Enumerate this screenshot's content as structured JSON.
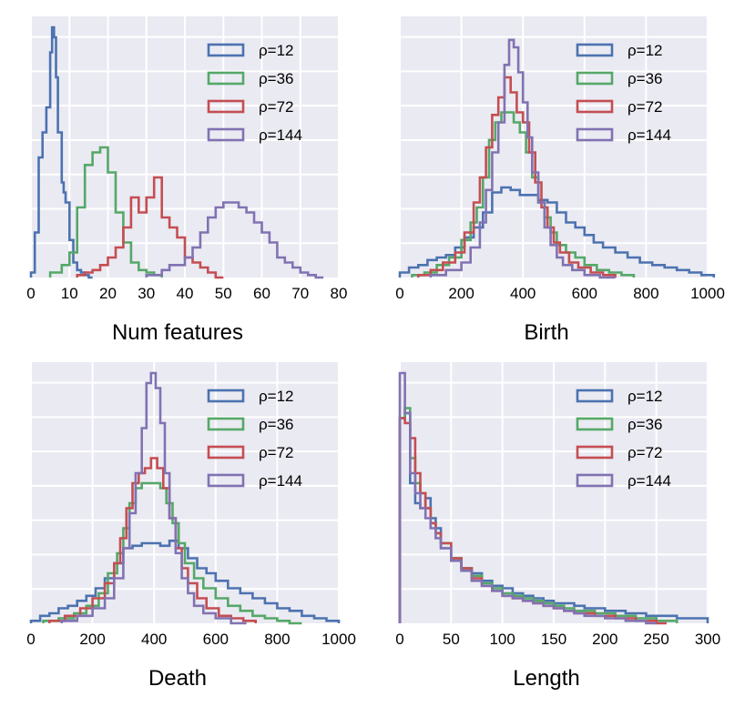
{
  "chart_data": [
    {
      "type": "histogram",
      "xlabel": "Num features",
      "xlim": [
        0,
        80
      ],
      "xticks": [
        0,
        10,
        20,
        30,
        40,
        50,
        60,
        70,
        80
      ],
      "ylim": [
        0,
        1
      ],
      "y_tick_labels_shown": false,
      "legend": "top-right",
      "series": [
        {
          "name": "ρ=12",
          "color": "#4c72b0",
          "x": [
            0,
            1,
            2,
            3,
            4,
            5,
            5.5,
            6,
            6.5,
            7,
            8,
            8.5,
            9,
            10,
            11,
            12,
            13,
            14,
            15
          ],
          "y": [
            0.02,
            0.18,
            0.48,
            0.58,
            0.68,
            0.9,
            1.0,
            0.96,
            0.8,
            0.58,
            0.38,
            0.34,
            0.3,
            0.15,
            0.06,
            0.03,
            0.02,
            0.01,
            0
          ]
        },
        {
          "name": "ρ=36",
          "color": "#55a868",
          "x": [
            5,
            8,
            10,
            12,
            14,
            16,
            18,
            20,
            22,
            24,
            26,
            28,
            30,
            32
          ],
          "y": [
            0.02,
            0.05,
            0.1,
            0.28,
            0.45,
            0.5,
            0.52,
            0.42,
            0.26,
            0.14,
            0.06,
            0.03,
            0.02,
            0.01
          ]
        },
        {
          "name": "ρ=72",
          "color": "#c44e52",
          "x": [
            12,
            14,
            16,
            18,
            20,
            22,
            24,
            26,
            28,
            30,
            32,
            34,
            36,
            38,
            40,
            42,
            44,
            46,
            48
          ],
          "y": [
            0.01,
            0.02,
            0.03,
            0.05,
            0.08,
            0.12,
            0.2,
            0.32,
            0.26,
            0.32,
            0.4,
            0.24,
            0.2,
            0.16,
            0.08,
            0.06,
            0.04,
            0.02,
            0
          ]
        },
        {
          "name": "ρ=144",
          "color": "#8172b2",
          "x": [
            30,
            34,
            36,
            40,
            42,
            44,
            46,
            48,
            50,
            52,
            54,
            56,
            58,
            60,
            62,
            64,
            66,
            68,
            70,
            72,
            74
          ],
          "y": [
            0.01,
            0.03,
            0.05,
            0.08,
            0.12,
            0.18,
            0.24,
            0.28,
            0.3,
            0.3,
            0.28,
            0.26,
            0.22,
            0.18,
            0.14,
            0.08,
            0.06,
            0.04,
            0.02,
            0.01,
            0
          ]
        }
      ]
    },
    {
      "type": "histogram",
      "xlabel": "Birth",
      "xlim": [
        0,
        1000
      ],
      "xticks": [
        0,
        200,
        400,
        600,
        800,
        1000
      ],
      "ylim": [
        0,
        1
      ],
      "y_tick_labels_shown": false,
      "legend": "top-right",
      "series": [
        {
          "name": "ρ=12",
          "color": "#4c72b0",
          "x": [
            0,
            30,
            60,
            90,
            120,
            150,
            180,
            210,
            240,
            270,
            300,
            330,
            360,
            390,
            420,
            450,
            480,
            510,
            540,
            570,
            600,
            630,
            660,
            700,
            740,
            780,
            820,
            860,
            900,
            940,
            980
          ],
          "y": [
            0.02,
            0.04,
            0.05,
            0.07,
            0.08,
            0.09,
            0.12,
            0.16,
            0.2,
            0.26,
            0.34,
            0.36,
            0.35,
            0.33,
            0.33,
            0.31,
            0.3,
            0.26,
            0.22,
            0.2,
            0.17,
            0.14,
            0.12,
            0.1,
            0.08,
            0.06,
            0.05,
            0.04,
            0.03,
            0.02,
            0.01
          ]
        },
        {
          "name": "ρ=36",
          "color": "#55a868",
          "x": [
            40,
            80,
            120,
            160,
            200,
            230,
            250,
            270,
            290,
            310,
            330,
            350,
            370,
            390,
            410,
            430,
            450,
            470,
            490,
            510,
            540,
            570,
            600,
            640,
            680,
            720
          ],
          "y": [
            0.01,
            0.02,
            0.05,
            0.08,
            0.15,
            0.22,
            0.28,
            0.4,
            0.55,
            0.62,
            0.66,
            0.66,
            0.62,
            0.58,
            0.5,
            0.4,
            0.3,
            0.24,
            0.18,
            0.13,
            0.1,
            0.08,
            0.05,
            0.03,
            0.02,
            0.01
          ]
        },
        {
          "name": "ρ=72",
          "color": "#c44e52",
          "x": [
            60,
            100,
            140,
            180,
            210,
            240,
            260,
            280,
            300,
            320,
            340,
            360,
            380,
            400,
            420,
            440,
            460,
            480,
            500,
            520,
            550,
            580,
            620,
            660
          ],
          "y": [
            0.01,
            0.03,
            0.06,
            0.1,
            0.18,
            0.3,
            0.4,
            0.52,
            0.65,
            0.72,
            0.8,
            0.74,
            0.66,
            0.62,
            0.5,
            0.38,
            0.28,
            0.2,
            0.14,
            0.1,
            0.06,
            0.04,
            0.02,
            0.01
          ]
        },
        {
          "name": "ρ=144",
          "color": "#8172b2",
          "x": [
            100,
            150,
            200,
            230,
            260,
            280,
            300,
            320,
            340,
            355,
            370,
            385,
            400,
            415,
            430,
            450,
            470,
            490,
            510,
            530,
            560,
            600,
            650
          ],
          "y": [
            0.01,
            0.03,
            0.06,
            0.12,
            0.22,
            0.35,
            0.5,
            0.62,
            0.85,
            0.95,
            0.92,
            0.82,
            0.7,
            0.56,
            0.42,
            0.3,
            0.2,
            0.13,
            0.08,
            0.05,
            0.03,
            0.01,
            0
          ]
        }
      ]
    },
    {
      "type": "histogram",
      "xlabel": "Death",
      "xlim": [
        0,
        1000
      ],
      "xticks": [
        0,
        200,
        400,
        600,
        800,
        1000
      ],
      "ylim": [
        0,
        1
      ],
      "y_tick_labels_shown": false,
      "legend": "top-right",
      "series": [
        {
          "name": "ρ=12",
          "color": "#4c72b0",
          "x": [
            0,
            30,
            60,
            90,
            120,
            150,
            180,
            210,
            240,
            270,
            300,
            330,
            360,
            390,
            420,
            450,
            480,
            510,
            540,
            570,
            600,
            640,
            680,
            720,
            760,
            800,
            840,
            880,
            920,
            960
          ],
          "y": [
            0.01,
            0.03,
            0.04,
            0.06,
            0.07,
            0.09,
            0.11,
            0.14,
            0.18,
            0.24,
            0.3,
            0.31,
            0.32,
            0.32,
            0.31,
            0.33,
            0.3,
            0.26,
            0.22,
            0.2,
            0.17,
            0.14,
            0.12,
            0.1,
            0.08,
            0.06,
            0.05,
            0.03,
            0.02,
            0.01
          ]
        },
        {
          "name": "ρ=36",
          "color": "#55a868",
          "x": [
            40,
            90,
            140,
            180,
            220,
            250,
            280,
            300,
            320,
            340,
            360,
            380,
            400,
            420,
            440,
            460,
            480,
            500,
            530,
            560,
            600,
            640,
            680,
            720,
            760,
            800,
            840
          ],
          "y": [
            0.01,
            0.02,
            0.04,
            0.07,
            0.12,
            0.2,
            0.28,
            0.38,
            0.48,
            0.54,
            0.56,
            0.56,
            0.56,
            0.54,
            0.48,
            0.4,
            0.32,
            0.24,
            0.18,
            0.14,
            0.1,
            0.07,
            0.05,
            0.03,
            0.02,
            0.01,
            0
          ]
        },
        {
          "name": "ρ=72",
          "color": "#c44e52",
          "x": [
            60,
            110,
            160,
            200,
            240,
            270,
            290,
            310,
            330,
            350,
            370,
            390,
            410,
            430,
            450,
            470,
            490,
            510,
            540,
            570,
            610,
            650,
            690
          ],
          "y": [
            0.01,
            0.03,
            0.06,
            0.1,
            0.16,
            0.24,
            0.34,
            0.46,
            0.56,
            0.6,
            0.62,
            0.66,
            0.62,
            0.54,
            0.42,
            0.3,
            0.22,
            0.16,
            0.1,
            0.06,
            0.03,
            0.02,
            0.01
          ]
        },
        {
          "name": "ρ=144",
          "color": "#8172b2",
          "x": [
            100,
            150,
            200,
            240,
            270,
            300,
            320,
            340,
            360,
            375,
            390,
            405,
            420,
            435,
            450,
            470,
            490,
            510,
            530,
            560,
            600,
            650
          ],
          "y": [
            0.01,
            0.03,
            0.06,
            0.1,
            0.18,
            0.3,
            0.44,
            0.6,
            0.78,
            0.96,
            1.0,
            0.94,
            0.8,
            0.6,
            0.42,
            0.28,
            0.18,
            0.12,
            0.07,
            0.04,
            0.02,
            0
          ]
        }
      ]
    },
    {
      "type": "histogram",
      "xlabel": "Length",
      "xlim": [
        0,
        300
      ],
      "xticks": [
        0,
        50,
        100,
        150,
        200,
        250,
        300
      ],
      "ylim": [
        0,
        1
      ],
      "y_tick_labels_shown": false,
      "legend": "top-right",
      "series": [
        {
          "name": "ρ=12",
          "color": "#4c72b0",
          "x": [
            0,
            5,
            10,
            15,
            20,
            25,
            30,
            35,
            40,
            50,
            60,
            70,
            80,
            90,
            100,
            110,
            120,
            130,
            140,
            150,
            160,
            170,
            180,
            190,
            200,
            210,
            220,
            230,
            240,
            250,
            260,
            270,
            280,
            290
          ],
          "y": [
            0.82,
            0.84,
            0.56,
            0.48,
            0.46,
            0.5,
            0.42,
            0.38,
            0.3,
            0.26,
            0.22,
            0.2,
            0.17,
            0.15,
            0.14,
            0.12,
            0.11,
            0.1,
            0.09,
            0.08,
            0.08,
            0.07,
            0.06,
            0.06,
            0.05,
            0.05,
            0.04,
            0.04,
            0.03,
            0.03,
            0.03,
            0.02,
            0.02,
            0.02
          ]
        },
        {
          "name": "ρ=36",
          "color": "#55a868",
          "x": [
            0,
            5,
            10,
            15,
            20,
            25,
            30,
            35,
            40,
            50,
            60,
            70,
            80,
            90,
            100,
            110,
            120,
            130,
            140,
            150,
            160,
            170,
            180,
            190,
            200,
            210,
            220,
            230,
            240,
            250,
            260
          ],
          "y": [
            0.82,
            0.86,
            0.66,
            0.56,
            0.52,
            0.46,
            0.4,
            0.36,
            0.32,
            0.26,
            0.22,
            0.19,
            0.16,
            0.14,
            0.12,
            0.11,
            0.1,
            0.09,
            0.08,
            0.07,
            0.06,
            0.05,
            0.05,
            0.04,
            0.04,
            0.03,
            0.03,
            0.02,
            0.02,
            0.01,
            0.01
          ]
        },
        {
          "name": "ρ=72",
          "color": "#c44e52",
          "x": [
            0,
            5,
            10,
            15,
            20,
            25,
            30,
            35,
            40,
            50,
            60,
            70,
            80,
            90,
            100,
            110,
            120,
            130,
            140,
            150,
            160,
            170,
            180,
            190,
            200,
            210,
            220,
            230,
            240,
            250
          ],
          "y": [
            0.82,
            0.8,
            0.74,
            0.6,
            0.52,
            0.46,
            0.4,
            0.36,
            0.32,
            0.26,
            0.22,
            0.18,
            0.15,
            0.13,
            0.11,
            0.1,
            0.09,
            0.08,
            0.07,
            0.06,
            0.05,
            0.04,
            0.04,
            0.03,
            0.03,
            0.02,
            0.02,
            0.01,
            0.01,
            0
          ]
        },
        {
          "name": "ρ=144",
          "color": "#8172b2",
          "x": [
            0,
            5,
            10,
            15,
            20,
            25,
            30,
            35,
            40,
            50,
            60,
            70,
            80,
            90,
            100,
            110,
            120,
            130,
            140,
            150,
            160,
            170,
            180,
            190,
            200,
            210,
            220,
            230,
            240
          ],
          "y": [
            1.0,
            0.84,
            0.6,
            0.52,
            0.46,
            0.42,
            0.38,
            0.34,
            0.3,
            0.25,
            0.21,
            0.17,
            0.15,
            0.13,
            0.11,
            0.1,
            0.09,
            0.08,
            0.07,
            0.06,
            0.05,
            0.04,
            0.03,
            0.03,
            0.02,
            0.02,
            0.01,
            0.01,
            0
          ]
        }
      ]
    }
  ]
}
